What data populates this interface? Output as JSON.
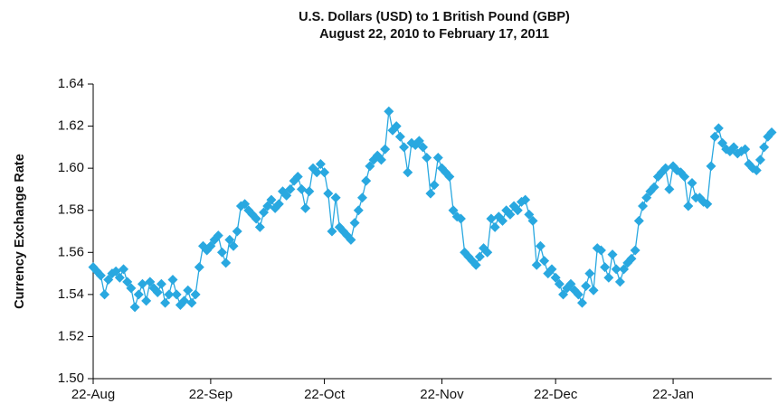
{
  "chart_data": {
    "type": "line",
    "title": "U.S. Dollars  (USD) to 1 British Pound  (GBP)",
    "subtitle": "August 22, 2010 to February 17, 2011",
    "y_label": "Currency Exchange Rate",
    "x": [
      "22-Aug",
      "23-Aug",
      "24-Aug",
      "25-Aug",
      "26-Aug",
      "27-Aug",
      "28-Aug",
      "29-Aug",
      "30-Aug",
      "31-Aug",
      "1-Sep",
      "2-Sep",
      "3-Sep",
      "4-Sep",
      "5-Sep",
      "6-Sep",
      "7-Sep",
      "8-Sep",
      "9-Sep",
      "10-Sep",
      "11-Sep",
      "12-Sep",
      "13-Sep",
      "14-Sep",
      "15-Sep",
      "16-Sep",
      "17-Sep",
      "18-Sep",
      "19-Sep",
      "20-Sep",
      "21-Sep",
      "22-Sep",
      "23-Sep",
      "24-Sep",
      "25-Sep",
      "26-Sep",
      "27-Sep",
      "28-Sep",
      "29-Sep",
      "30-Sep",
      "1-Oct",
      "2-Oct",
      "3-Oct",
      "4-Oct",
      "5-Oct",
      "6-Oct",
      "7-Oct",
      "8-Oct",
      "9-Oct",
      "10-Oct",
      "11-Oct",
      "12-Oct",
      "13-Oct",
      "14-Oct",
      "15-Oct",
      "16-Oct",
      "17-Oct",
      "18-Oct",
      "19-Oct",
      "20-Oct",
      "21-Oct",
      "22-Oct",
      "23-Oct",
      "24-Oct",
      "25-Oct",
      "26-Oct",
      "27-Oct",
      "28-Oct",
      "29-Oct",
      "30-Oct",
      "31-Oct",
      "1-Nov",
      "2-Nov",
      "3-Nov",
      "4-Nov",
      "5-Nov",
      "6-Nov",
      "7-Nov",
      "8-Nov",
      "9-Nov",
      "10-Nov",
      "11-Nov",
      "12-Nov",
      "13-Nov",
      "14-Nov",
      "15-Nov",
      "16-Nov",
      "17-Nov",
      "18-Nov",
      "19-Nov",
      "20-Nov",
      "21-Nov",
      "22-Nov",
      "23-Nov",
      "24-Nov",
      "25-Nov",
      "26-Nov",
      "27-Nov",
      "28-Nov",
      "29-Nov",
      "30-Nov",
      "1-Dec",
      "2-Dec",
      "3-Dec",
      "4-Dec",
      "5-Dec",
      "6-Dec",
      "7-Dec",
      "8-Dec",
      "9-Dec",
      "10-Dec",
      "11-Dec",
      "12-Dec",
      "13-Dec",
      "14-Dec",
      "15-Dec",
      "16-Dec",
      "17-Dec",
      "18-Dec",
      "19-Dec",
      "20-Dec",
      "21-Dec",
      "22-Dec",
      "23-Dec",
      "24-Dec",
      "25-Dec",
      "26-Dec",
      "27-Dec",
      "28-Dec",
      "29-Dec",
      "30-Dec",
      "31-Dec",
      "1-Jan",
      "2-Jan",
      "3-Jan",
      "4-Jan",
      "5-Jan",
      "6-Jan",
      "7-Jan",
      "8-Jan",
      "9-Jan",
      "10-Jan",
      "11-Jan",
      "12-Jan",
      "13-Jan",
      "14-Jan",
      "15-Jan",
      "16-Jan",
      "17-Jan",
      "18-Jan",
      "19-Jan",
      "20-Jan",
      "21-Jan",
      "22-Jan",
      "23-Jan",
      "24-Jan",
      "25-Jan",
      "26-Jan",
      "27-Jan",
      "28-Jan",
      "29-Jan",
      "30-Jan",
      "31-Jan",
      "1-Feb",
      "2-Feb",
      "3-Feb",
      "4-Feb",
      "5-Feb",
      "6-Feb",
      "7-Feb",
      "8-Feb",
      "9-Feb",
      "10-Feb",
      "11-Feb",
      "12-Feb",
      "13-Feb",
      "14-Feb",
      "15-Feb",
      "16-Feb",
      "17-Feb"
    ],
    "values": [
      1.553,
      1.551,
      1.549,
      1.54,
      1.547,
      1.55,
      1.551,
      1.548,
      1.552,
      1.546,
      1.543,
      1.534,
      1.54,
      1.545,
      1.537,
      1.546,
      1.543,
      1.541,
      1.545,
      1.536,
      1.54,
      1.547,
      1.54,
      1.535,
      1.537,
      1.542,
      1.536,
      1.54,
      1.553,
      1.563,
      1.561,
      1.563,
      1.566,
      1.568,
      1.56,
      1.555,
      1.566,
      1.563,
      1.57,
      1.582,
      1.583,
      1.58,
      1.578,
      1.576,
      1.572,
      1.579,
      1.582,
      1.585,
      1.581,
      1.583,
      1.589,
      1.587,
      1.59,
      1.594,
      1.596,
      1.59,
      1.581,
      1.589,
      1.6,
      1.598,
      1.602,
      1.598,
      1.588,
      1.57,
      1.586,
      1.572,
      1.57,
      1.568,
      1.566,
      1.574,
      1.58,
      1.586,
      1.594,
      1.601,
      1.604,
      1.606,
      1.604,
      1.609,
      1.627,
      1.618,
      1.62,
      1.615,
      1.61,
      1.598,
      1.612,
      1.611,
      1.613,
      1.61,
      1.605,
      1.588,
      1.592,
      1.605,
      1.6,
      1.598,
      1.596,
      1.58,
      1.577,
      1.576,
      1.56,
      1.558,
      1.556,
      1.554,
      1.558,
      1.562,
      1.56,
      1.576,
      1.572,
      1.577,
      1.575,
      1.58,
      1.578,
      1.582,
      1.58,
      1.584,
      1.585,
      1.578,
      1.575,
      1.554,
      1.563,
      1.556,
      1.55,
      1.552,
      1.548,
      1.545,
      1.54,
      1.543,
      1.545,
      1.542,
      1.54,
      1.536,
      1.544,
      1.55,
      1.542,
      1.562,
      1.561,
      1.553,
      1.548,
      1.559,
      1.552,
      1.546,
      1.552,
      1.555,
      1.557,
      1.561,
      1.575,
      1.582,
      1.586,
      1.589,
      1.591,
      1.596,
      1.598,
      1.6,
      1.59,
      1.601,
      1.599,
      1.598,
      1.596,
      1.582,
      1.593,
      1.586,
      1.586,
      1.584,
      1.583,
      1.601,
      1.615,
      1.619,
      1.612,
      1.609,
      1.608,
      1.61,
      1.607,
      1.608,
      1.609,
      1.602,
      1.6,
      1.599,
      1.604,
      1.61,
      1.615,
      1.617
    ],
    "color": "#29a8e0",
    "xticks": [
      "22-Aug",
      "22-Sep",
      "22-Oct",
      "22-Nov",
      "22-Dec",
      "22-Jan"
    ],
    "ylim": [
      1.5,
      1.64
    ],
    "yticks": [
      {
        "value": 1.5,
        "label": "1.50"
      },
      {
        "value": 1.52,
        "label": "1.52"
      },
      {
        "value": 1.54,
        "label": "1.54"
      },
      {
        "value": 1.56,
        "label": "1.56"
      },
      {
        "value": 1.58,
        "label": "1.58"
      },
      {
        "value": 1.6,
        "label": "1.60"
      },
      {
        "value": 1.62,
        "label": "1.62"
      },
      {
        "value": 1.64,
        "label": "1.64"
      }
    ]
  }
}
